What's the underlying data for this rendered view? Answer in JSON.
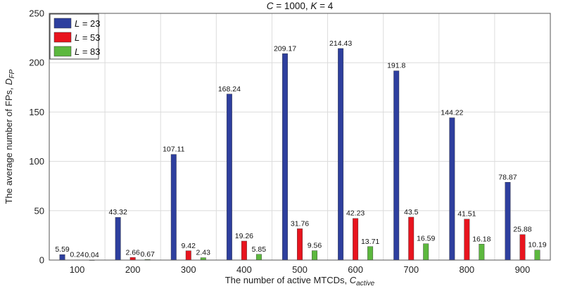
{
  "chart_data": {
    "type": "bar",
    "title": "C = 1000, K = 4",
    "title_parts": {
      "c_var": "C",
      "c_eq": " = 1000, ",
      "k_var": "K",
      "k_eq": " = 4"
    },
    "xlabel": "The number of active MTCDs, C",
    "xlabel_parts": {
      "text": "The number of active MTCDs, ",
      "var": "C",
      "sub": "active"
    },
    "ylabel": "The average number of FPs, D",
    "ylabel_parts": {
      "text": "The average number of FPs, ",
      "var": "D",
      "sub": "FP"
    },
    "categories": [
      "100",
      "200",
      "300",
      "400",
      "500",
      "600",
      "700",
      "800",
      "900"
    ],
    "series": [
      {
        "name": "L = 23",
        "var": "L",
        "eq": " = 23",
        "color": "#2e3f9e",
        "values": [
          5.59,
          43.32,
          107.11,
          168.24,
          209.17,
          214.43,
          191.8,
          144.22,
          78.87
        ],
        "labels": [
          "5.59",
          "43.32",
          "107.11",
          "168.24",
          "209.17",
          "214.43",
          "191.8",
          "144.22",
          "78.87"
        ]
      },
      {
        "name": "L = 53",
        "var": "L",
        "eq": " = 53",
        "color": "#e8141e",
        "values": [
          0.24,
          2.66,
          9.42,
          19.26,
          31.76,
          42.23,
          43.5,
          41.51,
          25.88
        ],
        "labels": [
          "0.24",
          "2.66",
          "9.42",
          "19.26",
          "31.76",
          "42.23",
          "43.5",
          "41.51",
          "25.88"
        ]
      },
      {
        "name": "L = 83",
        "var": "L",
        "eq": " = 83",
        "color": "#5cb83e",
        "values": [
          0.04,
          0.67,
          2.43,
          5.85,
          9.56,
          13.71,
          16.59,
          16.18,
          10.19
        ],
        "labels": [
          "0.04",
          "0.67",
          "2.43",
          "5.85",
          "9.56",
          "13.71",
          "16.59",
          "16.18",
          "10.19"
        ]
      }
    ],
    "ylim": [
      0,
      250
    ],
    "yticks": [
      0,
      50,
      100,
      150,
      200,
      250
    ],
    "grid": true,
    "legend": "top-left"
  }
}
